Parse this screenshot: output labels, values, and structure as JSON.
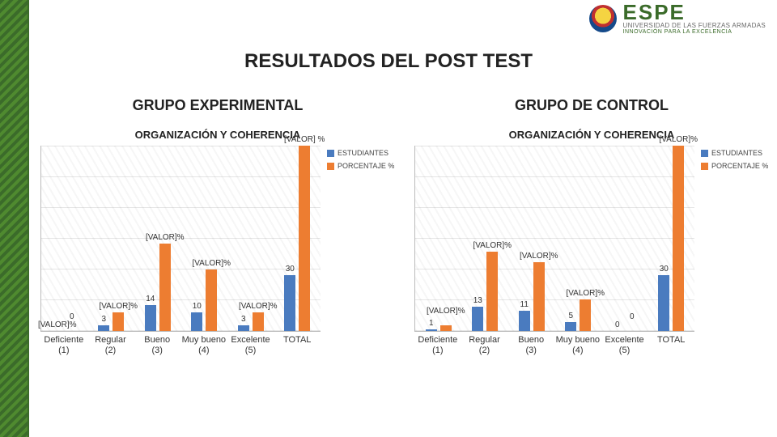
{
  "brand": {
    "name": "ESPE",
    "sub": "UNIVERSIDAD DE LAS FUERZAS ARMADAS",
    "tag": "INNOVACIÓN PARA LA EXCELENCIA"
  },
  "title": "RESULTADOS DEL POST TEST",
  "colors": {
    "series1": "#4a7bbf",
    "series2": "#ed7d31",
    "grid": "#cccccc",
    "axis": "#bbbbbb",
    "text": "#222222"
  },
  "legend": {
    "series1": "ESTUDIANTES",
    "series2": "PORCENTAJE %"
  },
  "categories": [
    "Deficiente (1)",
    "Regular (2)",
    "Bueno (3)",
    "Muy bueno (4)",
    "Excelente (5)",
    "TOTAL"
  ],
  "left": {
    "group_title": "GRUPO EXPERIMENTAL",
    "chart_title": "ORGANIZACIÓN Y COHERENCIA",
    "ymax": 100,
    "series": [
      {
        "students": 0,
        "pct": 0,
        "label_students": "[VALOR]%",
        "label_pct": "0"
      },
      {
        "students": 3,
        "pct": 10,
        "label_students": "3",
        "label_pct": "[VALOR]%"
      },
      {
        "students": 14,
        "pct": 47,
        "label_students": "14",
        "label_pct": "[VALOR]%"
      },
      {
        "students": 10,
        "pct": 33,
        "label_students": "10",
        "label_pct": "[VALOR]%"
      },
      {
        "students": 3,
        "pct": 10,
        "label_students": "3",
        "label_pct": "[VALOR]%"
      },
      {
        "students": 30,
        "pct": 100,
        "label_students": "30",
        "label_pct": "[VALOR] %"
      }
    ]
  },
  "right": {
    "group_title": "GRUPO DE CONTROL",
    "chart_title": "ORGANIZACIÓN Y COHERENCIA",
    "ymax": 100,
    "series": [
      {
        "students": 1,
        "pct": 3,
        "label_students": "1",
        "label_pct": "[VALOR]%"
      },
      {
        "students": 13,
        "pct": 43,
        "label_students": "13",
        "label_pct": "[VALOR]%"
      },
      {
        "students": 11,
        "pct": 37,
        "label_students": "11",
        "label_pct": "[VALOR]%"
      },
      {
        "students": 5,
        "pct": 17,
        "label_students": "5",
        "label_pct": "[VALOR]%"
      },
      {
        "students": 0,
        "pct": 0,
        "label_students": "0",
        "label_pct": "0"
      },
      {
        "students": 30,
        "pct": 100,
        "label_students": "30",
        "label_pct": "[VALOR]%"
      }
    ]
  }
}
